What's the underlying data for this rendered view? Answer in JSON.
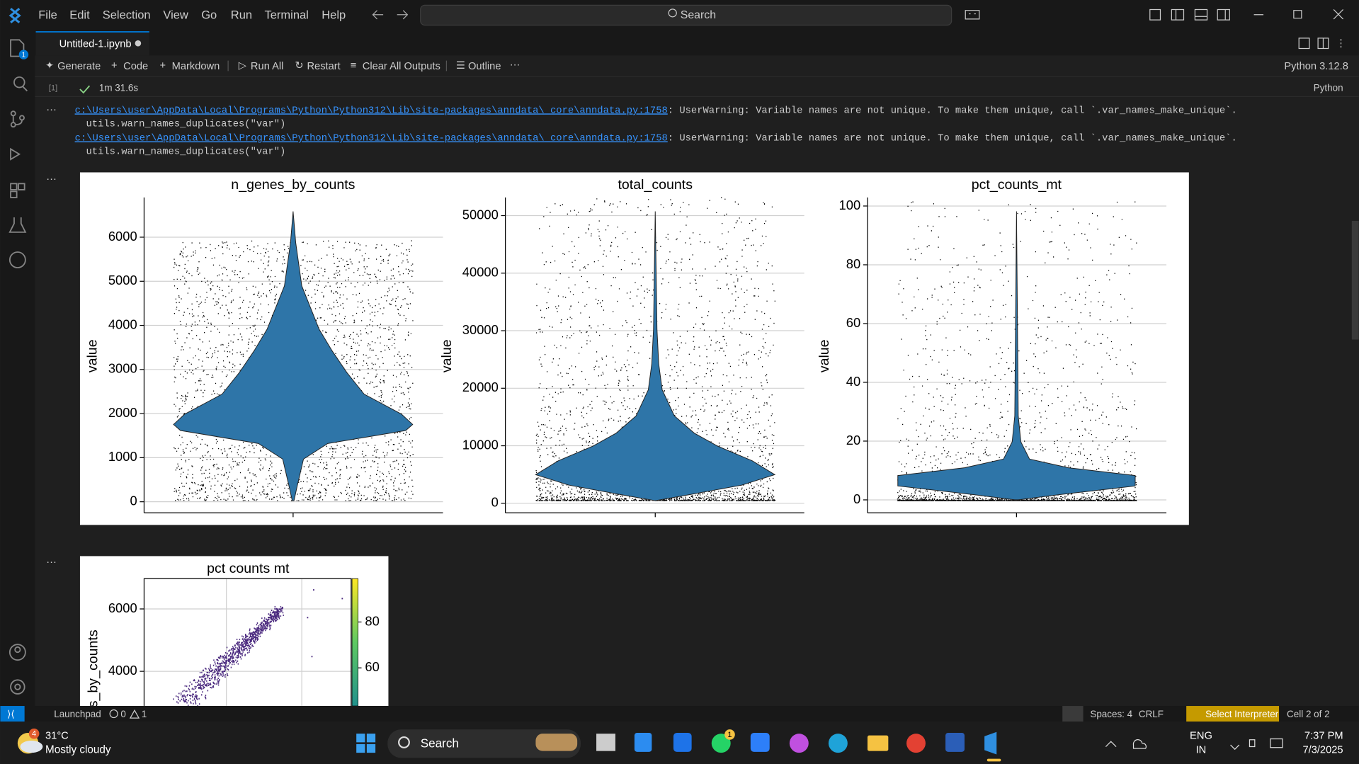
{
  "menu": [
    "File",
    "Edit",
    "Selection",
    "View",
    "Go",
    "Run",
    "Terminal",
    "Help"
  ],
  "search": "Search",
  "activity_badge": "1",
  "tab": {
    "title": "Untitled-1.ipynb"
  },
  "toolbar": {
    "items": [
      "Generate",
      "Code",
      "Markdown",
      "Run All",
      "Restart",
      "Clear All Outputs",
      "Outline"
    ],
    "kernel": "Python 3.12.8"
  },
  "cell": {
    "exec_count": "[1]",
    "duration": "1m 31.6s",
    "language": "Python"
  },
  "outputs": {
    "warnings": [
      {
        "link": "c:\\Users\\user\\AppData\\Local\\Programs\\Python\\Python312\\Lib\\site-packages\\anndata\\_core\\anndata.py:1758",
        "message": ": UserWarning: Variable names are not unique. To make them unique, call `.var_names_make_unique`.",
        "code": "utils.warn_names_duplicates(\"var\")"
      },
      {
        "link": "c:\\Users\\user\\AppData\\Local\\Programs\\Python\\Python312\\Lib\\site-packages\\anndata\\_core\\anndata.py:1758",
        "message": ": UserWarning: Variable names are not unique. To make them unique, call `.var_names_make_unique`.",
        "code": "utils.warn_names_duplicates(\"var\")"
      }
    ],
    "violin_plots": [
      {
        "title": "n_genes_by_counts",
        "ylabel": "value",
        "color": "#2e75a8",
        "ylim": [
          -250,
          6900
        ],
        "yticks": [
          0,
          1000,
          2000,
          3000,
          4000,
          5000,
          6000
        ]
      },
      {
        "title": "total_counts",
        "ylabel": "value",
        "color": "#2e75a8",
        "ylim": [
          -1650,
          53150
        ],
        "yticks": [
          0,
          10000,
          20000,
          30000,
          40000,
          50000
        ]
      },
      {
        "title": "pct_counts_mt",
        "ylabel": "value",
        "color": "#2e75a8",
        "ylim": [
          -4.4,
          102.9
        ],
        "yticks": [
          0,
          20,
          40,
          60,
          80,
          100
        ]
      }
    ],
    "scatter_plot": {
      "title": "pct counts mt",
      "ylabel": "s_by_counts",
      "color": "#4b2a7f",
      "ylim": [
        2890,
        6970
      ],
      "yticks": [
        4000,
        6000
      ],
      "clim": [
        43.4,
        98.9
      ],
      "colorbar_ticks": [
        60,
        80
      ]
    }
  },
  "status_bar": {
    "launchpad": "Launchpad",
    "errors": "0",
    "warnings": "1",
    "spaces": "Spaces: 4",
    "eol": "CRLF",
    "interpreter": "Select Interpreter",
    "cell": "Cell 2 of 2"
  },
  "taskbar": {
    "weather_badge": "4",
    "temperature": "31°C",
    "weather": "Mostly cloudy",
    "search": "Search",
    "whatsapp_badge": "1",
    "lang": "ENG",
    "region": "IN",
    "time": "7:37 PM",
    "date": "7/3/2025"
  }
}
